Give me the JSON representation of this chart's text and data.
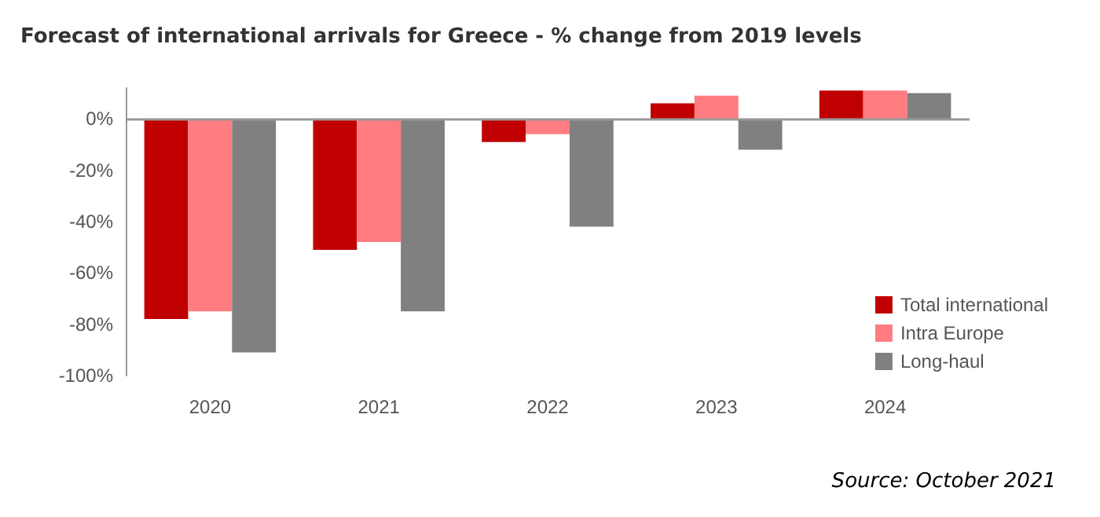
{
  "chart_data": {
    "type": "bar",
    "title": "Forecast of international arrivals for Greece - % change from 2019 levels",
    "categories": [
      "2020",
      "2021",
      "2022",
      "2023",
      "2024"
    ],
    "series": [
      {
        "name": "Total international",
        "color": "#c00000",
        "values": [
          -78,
          -51,
          -9,
          6,
          11
        ]
      },
      {
        "name": "Intra Europe",
        "color": "#ff7c80",
        "values": [
          -75,
          -48,
          -6,
          9,
          11
        ]
      },
      {
        "name": "Long-haul",
        "color": "#808080",
        "values": [
          -91,
          -75,
          -42,
          -12,
          10
        ]
      }
    ],
    "ylim": [
      -100,
      12
    ],
    "yticks": [
      {
        "value": 0,
        "label": "0%"
      },
      {
        "value": -20,
        "label": "-20%"
      },
      {
        "value": -40,
        "label": "-40%"
      },
      {
        "value": -60,
        "label": "-60%"
      },
      {
        "value": -80,
        "label": "-80%"
      },
      {
        "value": -100,
        "label": "-100%"
      }
    ],
    "ref_lines": [
      {
        "axis": "y",
        "value": 0,
        "color": "#999999"
      }
    ],
    "grid": false,
    "legend": "right",
    "annotations": [
      "Source: October 2021"
    ]
  }
}
